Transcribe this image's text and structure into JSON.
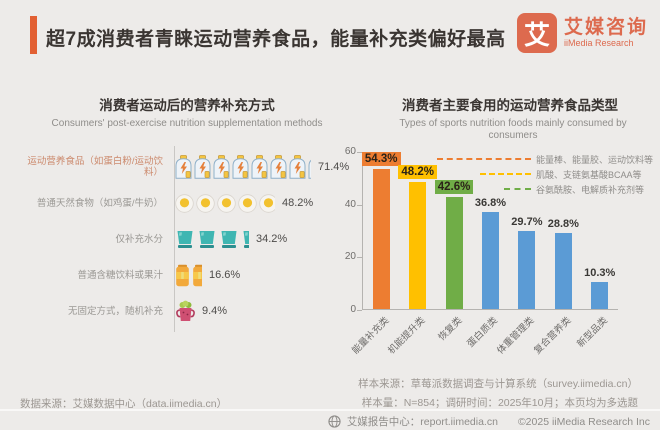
{
  "header": {
    "title": "超7成消费者青睐运动营养食品，能量补充类偏好最高",
    "logo_mark": "艾",
    "logo_name": "艾媒咨询",
    "logo_sub": "iiMedia Research"
  },
  "colors": {
    "accent_orange": "#e26033",
    "logo_orange": "#dd6a4e",
    "bar_orange": "#ed7d31",
    "bar_yellow": "#ffc000",
    "bar_green": "#70ad47",
    "bar_blue": "#5b9bd5"
  },
  "chart_data": [
    {
      "type": "bar",
      "variant": "pictogram",
      "orientation": "horizontal",
      "title": "消费者运动后的营养补充方式",
      "subtitle": "Consumers' post-exercise nutrition supplementation methods",
      "categories": [
        "运动营养食品（如蛋白粉/运动饮料）",
        "普通天然食物（如鸡蛋/牛奶）",
        "仅补充水分",
        "普通含糖饮料或果汁",
        "无固定方式，随机补充"
      ],
      "values": [
        71.4,
        48.2,
        34.2,
        16.6,
        9.4
      ],
      "value_labels": [
        "71.4%",
        "48.2%",
        "34.2%",
        "16.6%",
        "9.4%"
      ],
      "icons": [
        "sports-drink-bottle",
        "egg",
        "water-cup",
        "juice-can",
        "smoothie-cup"
      ],
      "icon_unit_percent": 10,
      "highlight_row": 0
    },
    {
      "type": "bar",
      "title": "消费者主要食用的运动营养食品类型",
      "subtitle": "Types of sports nutrition foods mainly consumed by consumers",
      "categories": [
        "能量补充类",
        "机能提升类",
        "恢复类",
        "蛋白质类",
        "体重管理类",
        "复合营养类",
        "新型品类"
      ],
      "values": [
        54.3,
        48.2,
        42.6,
        36.8,
        29.7,
        28.8,
        10.3
      ],
      "value_labels": [
        "54.3%",
        "48.2%",
        "42.6%",
        "36.8%",
        "29.7%",
        "28.8%",
        "10.3%"
      ],
      "bar_colors": [
        "#ed7d31",
        "#ffc000",
        "#70ad47",
        "#5b9bd5",
        "#5b9bd5",
        "#5b9bd5",
        "#5b9bd5"
      ],
      "boxed_labels": [
        true,
        true,
        true,
        false,
        false,
        false,
        false
      ],
      "ylim": [
        0,
        60
      ],
      "yticks": [
        0,
        20,
        40,
        60
      ],
      "grid": false,
      "legend_position": "none",
      "annotations": [
        {
          "text": "能量棒、能量胶、运动饮料等",
          "color": "#ed7d31"
        },
        {
          "text": "肌酸、支链氨基酸BCAA等",
          "color": "#ffc000"
        },
        {
          "text": "谷氨酰胺、电解质补充剂等",
          "color": "#70ad47"
        }
      ]
    }
  ],
  "footer": {
    "data_source": "数据来源：艾媒数据中心（data.iimedia.cn）",
    "sample_source": "样本来源：草莓派数据调查与计算系统（survey.iimedia.cn）",
    "sample_info": "样本量：N=854；调研时间：2025年10月；本页均为多选题",
    "report_center": "艾媒报告中心：report.iimedia.cn",
    "copyright": "©2025  iiMedia Research  Inc"
  }
}
